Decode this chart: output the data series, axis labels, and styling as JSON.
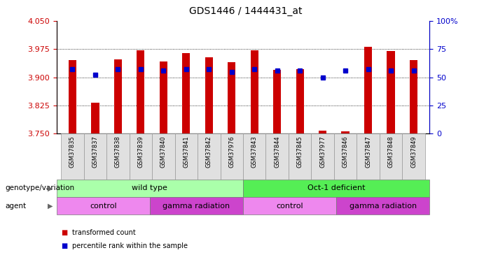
{
  "title": "GDS1446 / 1444431_at",
  "samples": [
    "GSM37835",
    "GSM37837",
    "GSM37838",
    "GSM37839",
    "GSM37840",
    "GSM37841",
    "GSM37842",
    "GSM37976",
    "GSM37843",
    "GSM37844",
    "GSM37845",
    "GSM37977",
    "GSM37846",
    "GSM37847",
    "GSM37848",
    "GSM37849"
  ],
  "transformed_count": [
    3.945,
    3.833,
    3.948,
    3.972,
    3.942,
    3.965,
    3.953,
    3.94,
    3.972,
    3.92,
    3.922,
    3.758,
    3.756,
    3.982,
    3.97,
    3.945
  ],
  "percentile_rank": [
    57,
    52,
    57,
    57,
    56,
    57,
    57,
    55,
    57,
    56,
    56,
    50,
    56,
    57,
    56,
    56
  ],
  "ylim_left": [
    3.75,
    4.05
  ],
  "ylim_right": [
    0,
    100
  ],
  "yticks_left": [
    3.75,
    3.825,
    3.9,
    3.975,
    4.05
  ],
  "yticks_right": [
    0,
    25,
    50,
    75,
    100
  ],
  "bar_color": "#cc0000",
  "dot_color": "#0000cc",
  "bar_width": 0.35,
  "groups": [
    {
      "label": "wild type",
      "start": 0,
      "end": 7,
      "color": "#aaffaa"
    },
    {
      "label": "Oct-1 deficient",
      "start": 8,
      "end": 15,
      "color": "#55ee55"
    }
  ],
  "agents": [
    {
      "label": "control",
      "start": 0,
      "end": 3,
      "color": "#ee88ee"
    },
    {
      "label": "gamma radiation",
      "start": 4,
      "end": 7,
      "color": "#cc44cc"
    },
    {
      "label": "control",
      "start": 8,
      "end": 11,
      "color": "#ee88ee"
    },
    {
      "label": "gamma radiation",
      "start": 12,
      "end": 15,
      "color": "#cc44cc"
    }
  ],
  "legend_items": [
    {
      "label": "transformed count",
      "color": "#cc0000"
    },
    {
      "label": "percentile rank within the sample",
      "color": "#0000cc"
    }
  ],
  "left_axis_color": "#cc0000",
  "right_axis_color": "#0000cc",
  "row1_label": "genotype/variation",
  "row2_label": "agent"
}
